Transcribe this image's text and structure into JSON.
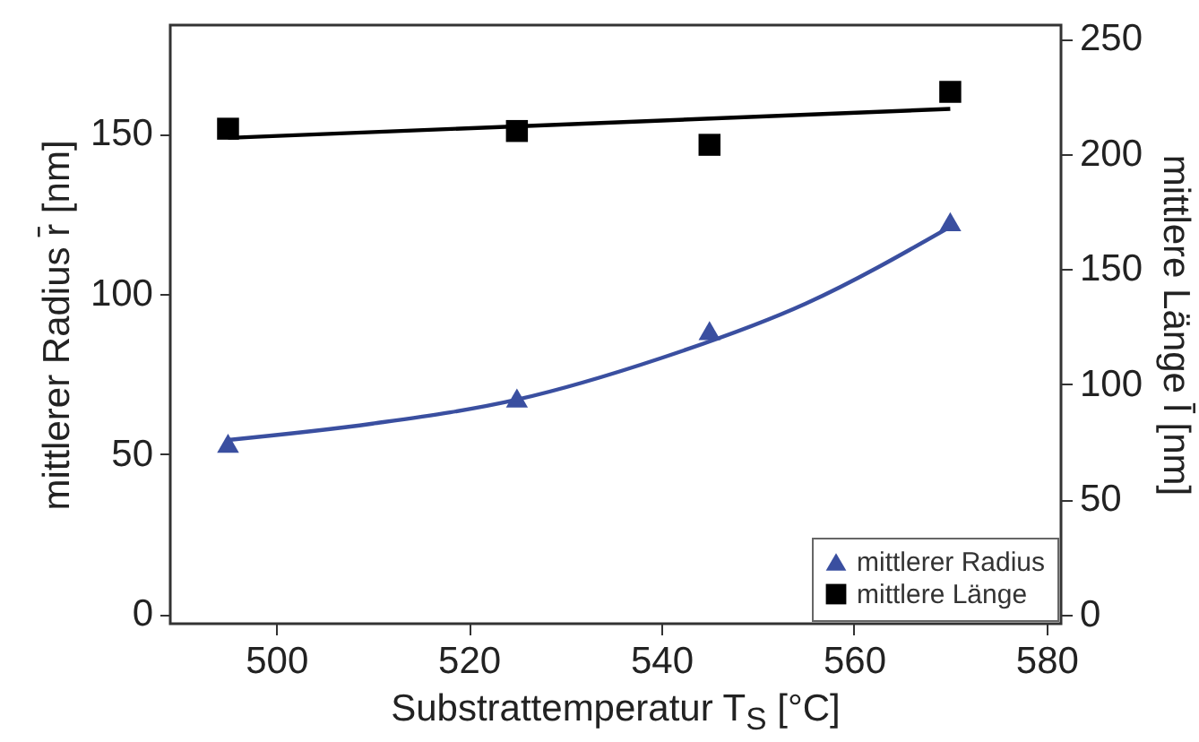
{
  "chart_data": {
    "type": "scatter",
    "xlabel": "Substrattemperatur T$_{S}$ [°C]",
    "ylabel": "mittlerer Radius r̄ [nm]",
    "y2label": "mittlere Länge l̄ [nm]",
    "xlim": [
      489,
      581.5
    ],
    "xticks": [
      500,
      520,
      540,
      560,
      580
    ],
    "ylim": [
      -3,
      184
    ],
    "yticks": [
      0,
      50,
      100,
      150
    ],
    "y2lim": [
      -4,
      256
    ],
    "y2ticks": [
      0,
      50,
      100,
      150,
      200,
      250
    ],
    "grid": false,
    "legend": "bottom right",
    "series": [
      {
        "name": "mittlerer Radius",
        "color": "#3a4fa0",
        "marker": "triangle",
        "x": [
          495,
          525,
          545,
          570
        ],
        "values": [
          53.4,
          67.5,
          88.6,
          122.6
        ]
      },
      {
        "type": "line",
        "color": "#3a4fa0",
        "marker": "none",
        "x": [
          495,
          510,
          525,
          540,
          555,
          570
        ],
        "values": [
          54.4,
          59.5,
          67,
          80,
          97,
          121
        ]
      },
      {
        "name": "mittlere Länge",
        "color": "#000000",
        "marker": "square",
        "axis": "y2",
        "x": [
          495,
          525,
          545,
          570
        ],
        "values": [
          211,
          210,
          204,
          227
        ]
      },
      {
        "type": "line",
        "color": "#000000",
        "marker": "none",
        "axis": "y2",
        "x": [
          495,
          570
        ],
        "values": [
          207,
          219.6
        ]
      }
    ]
  }
}
